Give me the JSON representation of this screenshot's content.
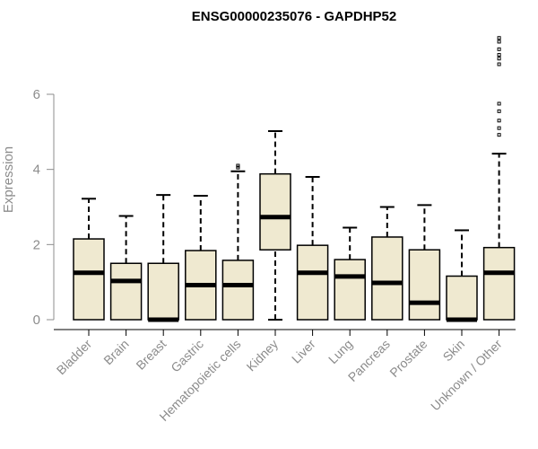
{
  "chart_data": {
    "type": "boxplot",
    "title": "ENSG00000235076 - GAPDHP52",
    "xlabel": "",
    "ylabel": "Expression",
    "ylim": [
      0,
      7.6
    ],
    "yticks": [
      0,
      2,
      4,
      6
    ],
    "grid": false,
    "box_color": "#efe9d0",
    "categories": [
      "Bladder",
      "Brain",
      "Breast",
      "Gastric",
      "Hematopoietic cells",
      "Kidney",
      "Liver",
      "Lung",
      "Pancreas",
      "Prostate",
      "Skin",
      "Unknown / Other"
    ],
    "boxes": [
      {
        "min": 0,
        "q1": 0,
        "median": 1.25,
        "q3": 2.15,
        "max": 3.22,
        "outliers": []
      },
      {
        "min": 0,
        "q1": 0,
        "median": 1.03,
        "q3": 1.5,
        "max": 2.76,
        "outliers": []
      },
      {
        "min": 0,
        "q1": 0,
        "median": 0,
        "q3": 1.5,
        "max": 3.32,
        "outliers": []
      },
      {
        "min": 0,
        "q1": 0,
        "median": 0.92,
        "q3": 1.84,
        "max": 3.3,
        "outliers": []
      },
      {
        "min": 0,
        "q1": 0,
        "median": 0.92,
        "q3": 1.58,
        "max": 3.95,
        "outliers": [
          4.05,
          4.1
        ]
      },
      {
        "min": 0,
        "q1": 1.86,
        "median": 2.73,
        "q3": 3.88,
        "max": 5.02,
        "outliers": []
      },
      {
        "min": 0,
        "q1": 0,
        "median": 1.25,
        "q3": 1.98,
        "max": 3.8,
        "outliers": []
      },
      {
        "min": 0,
        "q1": 0,
        "median": 1.15,
        "q3": 1.6,
        "max": 2.45,
        "outliers": []
      },
      {
        "min": 0,
        "q1": 0,
        "median": 0.98,
        "q3": 2.2,
        "max": 3.0,
        "outliers": []
      },
      {
        "min": 0,
        "q1": 0,
        "median": 0.45,
        "q3": 1.86,
        "max": 3.05,
        "outliers": []
      },
      {
        "min": 0,
        "q1": 0,
        "median": 0,
        "q3": 1.16,
        "max": 2.38,
        "outliers": []
      },
      {
        "min": 0,
        "q1": 0,
        "median": 1.25,
        "q3": 1.92,
        "max": 4.42,
        "outliers": [
          4.92,
          5.1,
          5.3,
          5.55,
          5.75,
          6.8,
          6.95,
          7.05,
          7.2,
          7.4,
          7.5
        ]
      }
    ]
  }
}
